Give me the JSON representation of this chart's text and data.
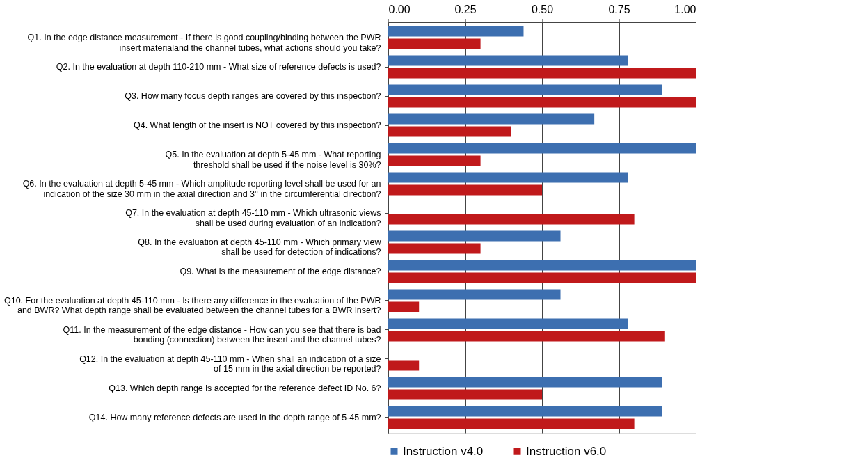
{
  "chart_data": {
    "type": "bar",
    "orientation": "horizontal",
    "categories": [
      "Q1. In the edge distance measurement - If there is good coupling/binding between the PWR\ninsert materialand the channel tubes, what actions should you take?",
      "Q2. In the evaluation at depth 110-210 mm - What size of reference defects is used?",
      "Q3. How many focus depth ranges are covered by this inspection?",
      "Q4. What length of the insert is NOT covered by this inspection?",
      "Q5. In the evaluation at depth 5-45 mm - What reporting\nthreshold shall be used if the noise level is 30%?",
      "Q6. In the evaluation at depth 5-45 mm - Which amplitude reporting level shall be used for an\nindication of the size 30 mm in the axial direction and 3° in the circumferential direction?",
      "Q7. In the evaluation at depth 45-110 mm - Which ultrasonic views\nshall be used during evaluation of an indication?",
      "Q8. In the evaluation at depth 45-110 mm -  Which primary view\nshall be used for detection of indications?",
      "Q9. What is the measurement of the edge distance?",
      "Q10. For the evaluation at depth 45-110 mm - Is there any difference in the evaluation of the PWR\nand BWR? What depth range shall be evaluated between the channel tubes for a BWR insert?",
      "Q11. In the measurement of the edge distance - How can you see that there is bad\nbonding (connection) between the insert and the channel tubes?",
      "Q12. In the evaluation at depth 45-110 mm - When shall an indication of a size\nof 15 mm in the axial direction be reported?",
      "Q13. Which depth range is accepted for the reference defect ID No. 6?",
      "Q14. How many reference defects are used in the depth range of 5-45 mm?"
    ],
    "series": [
      {
        "name": "Instruction v4.0",
        "color": "#3d6fb0",
        "values": [
          0.44,
          0.78,
          0.89,
          0.67,
          1.0,
          0.78,
          0,
          0.56,
          1.0,
          0.56,
          0.78,
          0,
          0.89,
          0.89
        ]
      },
      {
        "name": "Instruction v6.0",
        "color": "#c0191b",
        "values": [
          0.3,
          1.0,
          1.0,
          0.4,
          0.3,
          0.5,
          0.8,
          0.3,
          1.0,
          0.1,
          0.9,
          0.1,
          0.5,
          0.8
        ]
      }
    ],
    "xlim": [
      0,
      1
    ],
    "xticks": [
      {
        "value": 0,
        "label": "0.00"
      },
      {
        "value": 0.25,
        "label": "0.25"
      },
      {
        "value": 0.5,
        "label": "0.50"
      },
      {
        "value": 0.75,
        "label": "0.75"
      },
      {
        "value": 1,
        "label": "1.00"
      }
    ],
    "grid": "x",
    "legend": "bottom"
  }
}
